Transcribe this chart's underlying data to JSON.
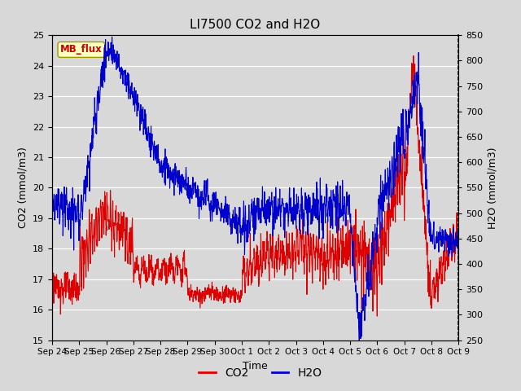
{
  "title": "LI7500 CO2 and H2O",
  "xlabel": "Time",
  "ylabel_left": "CO2 (mmol/m3)",
  "ylabel_right": "H2O (mmol/m3)",
  "co2_color": "#dd0000",
  "h2o_color": "#0000cc",
  "ylim_left": [
    15.0,
    25.0
  ],
  "ylim_right": [
    250,
    850
  ],
  "yticks_left": [
    15.0,
    16.0,
    17.0,
    18.0,
    19.0,
    20.0,
    21.0,
    22.0,
    23.0,
    24.0,
    25.0
  ],
  "yticks_right": [
    250,
    300,
    350,
    400,
    450,
    500,
    550,
    600,
    650,
    700,
    750,
    800,
    850
  ],
  "bg_color": "#d8d8d8",
  "axes_bg_color": "#d8d8d8",
  "label_box_text": "MB_flux",
  "label_box_facecolor": "#ffffc0",
  "label_box_edgecolor": "#999900",
  "label_box_textcolor": "#cc0000",
  "legend_co2": "CO2",
  "legend_h2o": "H2O",
  "xticklabels": [
    "Sep 24",
    "Sep 25",
    "Sep 26",
    "Sep 27",
    "Sep 28",
    "Sep 29",
    "Sep 30",
    "Oct 1",
    "Oct 2",
    "Oct 3",
    "Oct 4",
    "Oct 5",
    "Oct 6",
    "Oct 7",
    "Oct 8",
    "Oct 9"
  ],
  "n_points": 1500
}
